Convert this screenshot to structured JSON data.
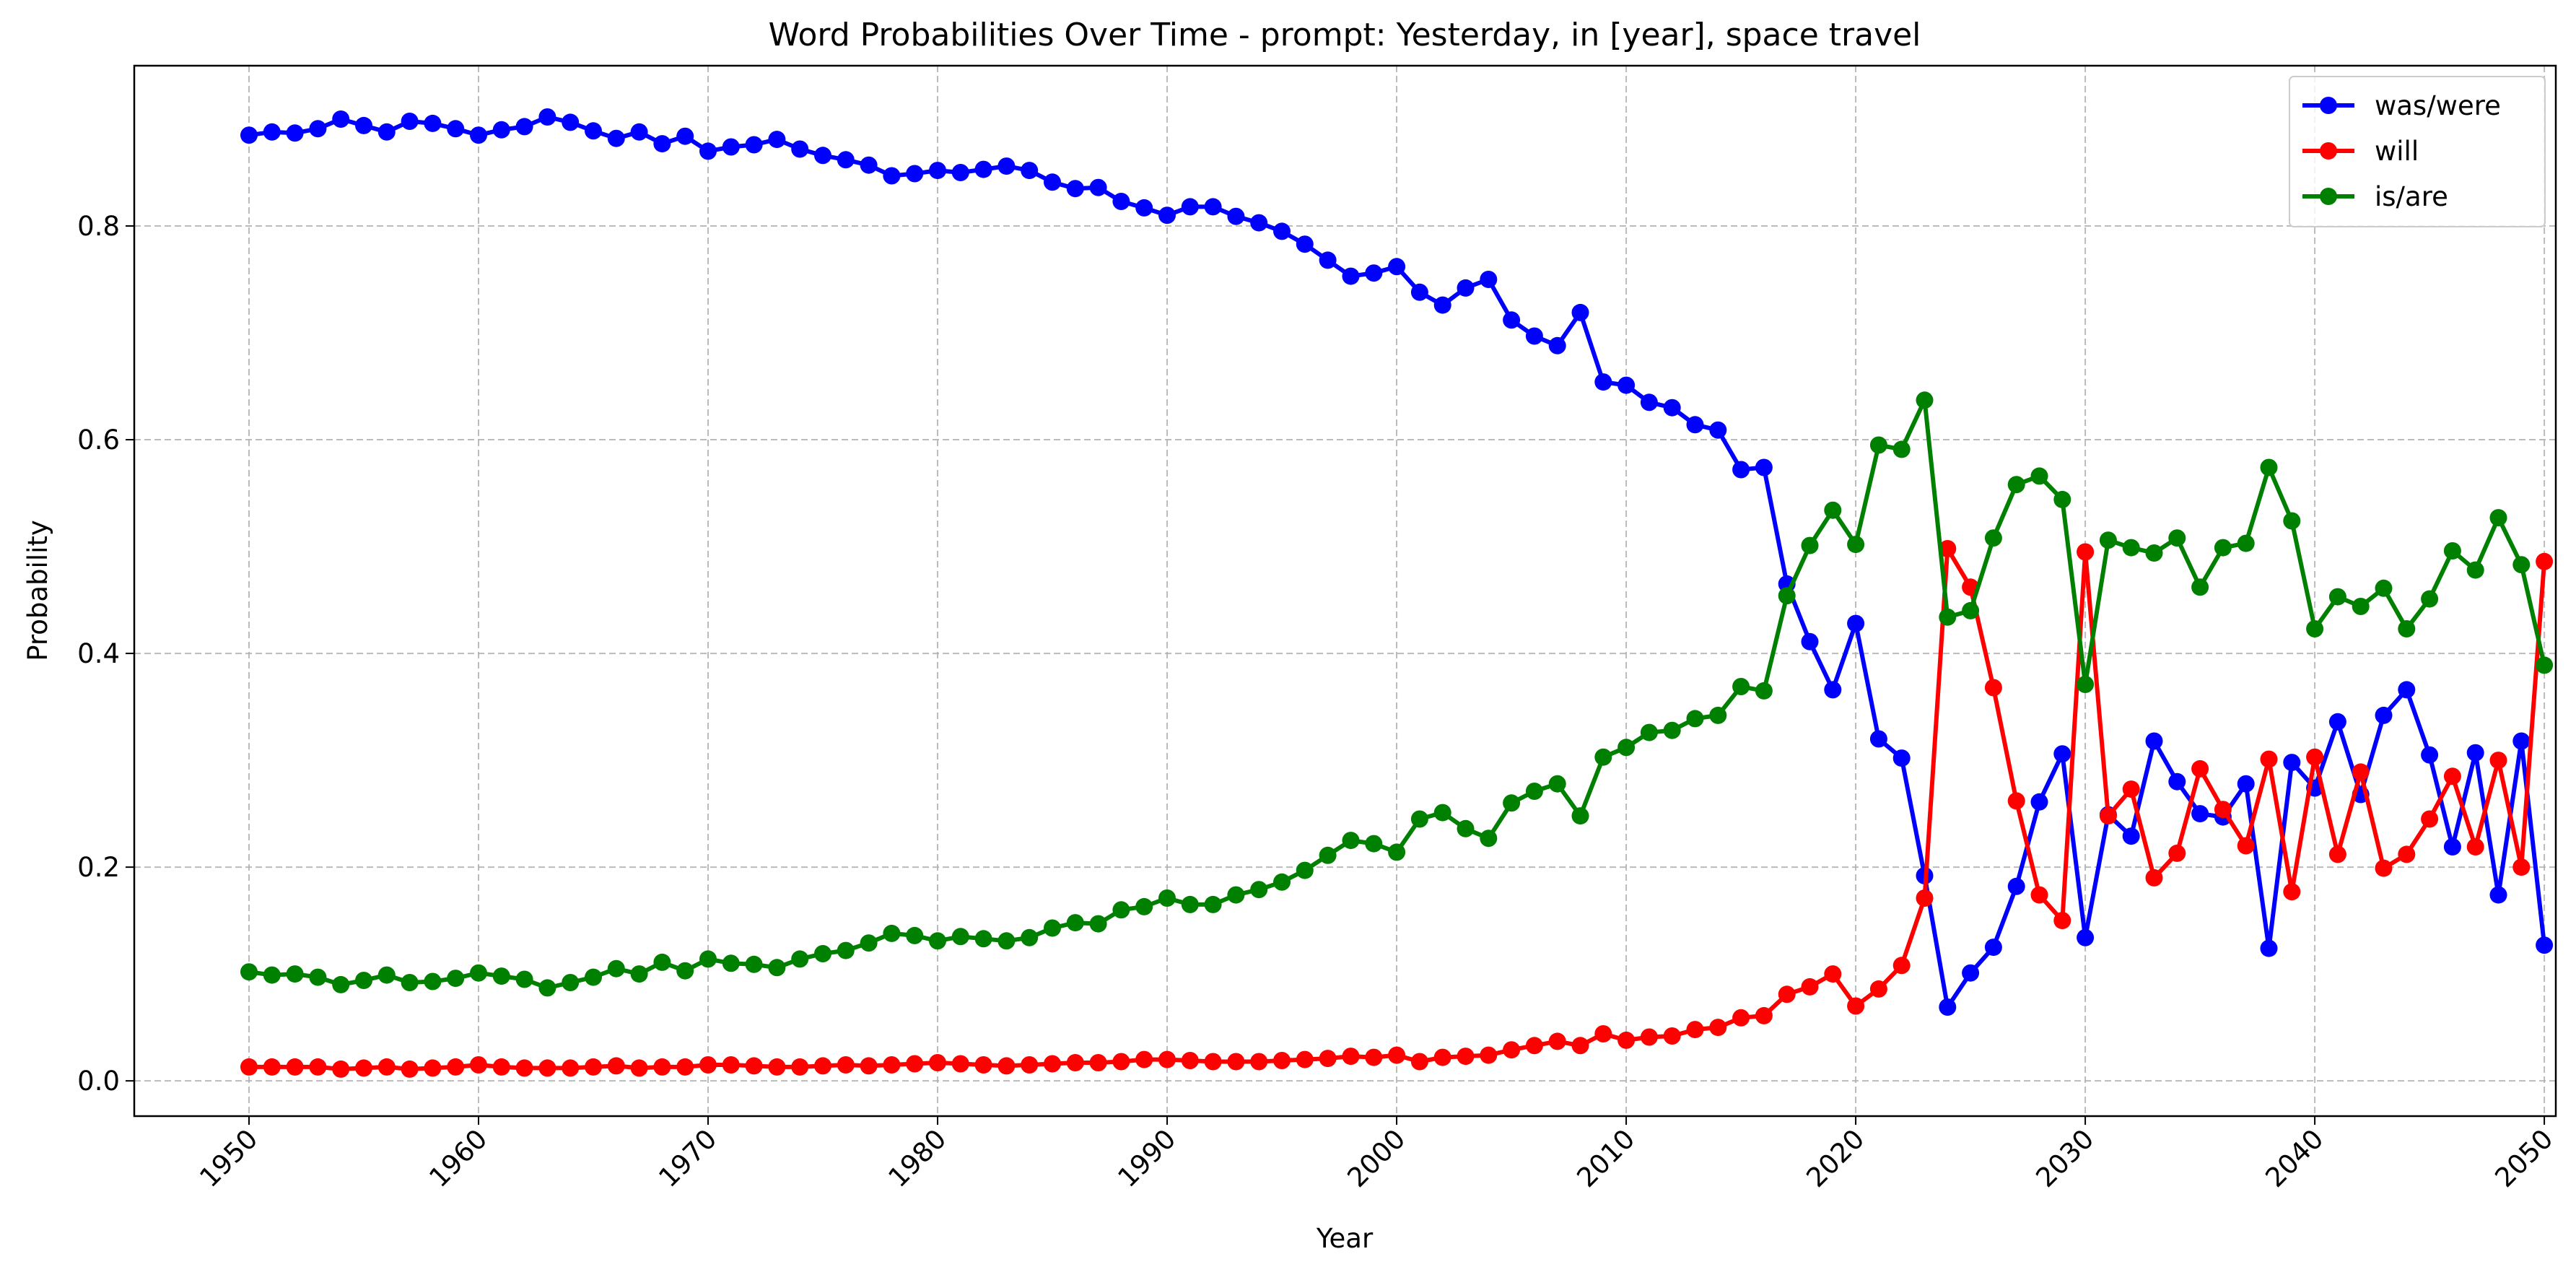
{
  "chart_data": {
    "type": "line",
    "title": "Word Probabilities Over Time - prompt: Yesterday, in [year], space travel",
    "xlabel": "Year",
    "ylabel": "Probability",
    "xlim": [
      1945,
      2050.5
    ],
    "ylim": [
      -0.033,
      0.95
    ],
    "xticks": [
      1950,
      1960,
      1970,
      1980,
      1990,
      2000,
      2010,
      2020,
      2030,
      2040,
      2050
    ],
    "yticks": [
      0.0,
      0.2,
      0.4,
      0.6,
      0.8
    ],
    "ytick_labels": [
      "0.0",
      "0.2",
      "0.4",
      "0.6",
      "0.8"
    ],
    "grid": true,
    "legend_position": "top-right",
    "x_start": 1950,
    "series": [
      {
        "name": "was/were",
        "color": "#0000ff",
        "values": [
          0.885,
          0.888,
          0.887,
          0.891,
          0.9,
          0.894,
          0.888,
          0.898,
          0.896,
          0.891,
          0.885,
          0.89,
          0.893,
          0.902,
          0.897,
          0.889,
          0.882,
          0.888,
          0.877,
          0.884,
          0.87,
          0.874,
          0.876,
          0.881,
          0.872,
          0.866,
          0.862,
          0.857,
          0.847,
          0.849,
          0.852,
          0.85,
          0.853,
          0.856,
          0.852,
          0.841,
          0.835,
          0.836,
          0.823,
          0.817,
          0.81,
          0.818,
          0.818,
          0.809,
          0.803,
          0.795,
          0.783,
          0.768,
          0.753,
          0.756,
          0.762,
          0.738,
          0.726,
          0.742,
          0.75,
          0.712,
          0.697,
          0.688,
          0.719,
          0.654,
          0.651,
          0.635,
          0.63,
          0.614,
          0.609,
          0.572,
          0.574,
          0.465,
          0.411,
          0.366,
          0.428,
          0.32,
          0.302,
          0.192,
          0.069,
          0.101,
          0.125,
          0.182,
          0.261,
          0.306,
          0.134,
          0.249,
          0.229,
          0.318,
          0.28,
          0.25,
          0.247,
          0.278,
          0.124,
          0.298,
          0.274,
          0.336,
          0.268,
          0.342,
          0.366,
          0.305,
          0.219,
          0.307,
          0.174,
          0.318,
          0.127
        ]
      },
      {
        "name": "will",
        "color": "#ff0000",
        "values": [
          0.013,
          0.013,
          0.013,
          0.013,
          0.011,
          0.012,
          0.013,
          0.011,
          0.012,
          0.013,
          0.015,
          0.013,
          0.012,
          0.012,
          0.012,
          0.013,
          0.014,
          0.012,
          0.013,
          0.013,
          0.015,
          0.015,
          0.014,
          0.013,
          0.013,
          0.014,
          0.015,
          0.014,
          0.015,
          0.016,
          0.017,
          0.016,
          0.015,
          0.014,
          0.015,
          0.016,
          0.017,
          0.017,
          0.018,
          0.02,
          0.02,
          0.019,
          0.018,
          0.018,
          0.018,
          0.019,
          0.02,
          0.021,
          0.023,
          0.022,
          0.024,
          0.018,
          0.022,
          0.023,
          0.024,
          0.029,
          0.033,
          0.037,
          0.033,
          0.044,
          0.038,
          0.041,
          0.042,
          0.048,
          0.05,
          0.059,
          0.061,
          0.081,
          0.088,
          0.1,
          0.07,
          0.086,
          0.108,
          0.171,
          0.498,
          0.462,
          0.368,
          0.262,
          0.174,
          0.15,
          0.495,
          0.248,
          0.273,
          0.19,
          0.213,
          0.292,
          0.254,
          0.22,
          0.301,
          0.177,
          0.303,
          0.212,
          0.289,
          0.199,
          0.212,
          0.245,
          0.285,
          0.219,
          0.3,
          0.2,
          0.486
        ]
      },
      {
        "name": "is/are",
        "color": "#008000",
        "values": [
          0.102,
          0.099,
          0.1,
          0.097,
          0.09,
          0.094,
          0.099,
          0.092,
          0.093,
          0.096,
          0.101,
          0.098,
          0.095,
          0.087,
          0.092,
          0.097,
          0.105,
          0.1,
          0.111,
          0.103,
          0.114,
          0.11,
          0.109,
          0.106,
          0.114,
          0.119,
          0.122,
          0.129,
          0.138,
          0.136,
          0.131,
          0.135,
          0.133,
          0.131,
          0.134,
          0.143,
          0.148,
          0.147,
          0.16,
          0.163,
          0.171,
          0.165,
          0.165,
          0.174,
          0.179,
          0.186,
          0.197,
          0.211,
          0.225,
          0.222,
          0.214,
          0.245,
          0.251,
          0.236,
          0.227,
          0.26,
          0.271,
          0.278,
          0.248,
          0.303,
          0.312,
          0.326,
          0.328,
          0.339,
          0.342,
          0.369,
          0.365,
          0.454,
          0.501,
          0.534,
          0.502,
          0.595,
          0.591,
          0.637,
          0.434,
          0.44,
          0.508,
          0.558,
          0.566,
          0.544,
          0.371,
          0.506,
          0.499,
          0.494,
          0.508,
          0.462,
          0.499,
          0.503,
          0.574,
          0.524,
          0.423,
          0.453,
          0.444,
          0.461,
          0.423,
          0.451,
          0.496,
          0.478,
          0.527,
          0.483,
          0.389
        ]
      }
    ]
  }
}
